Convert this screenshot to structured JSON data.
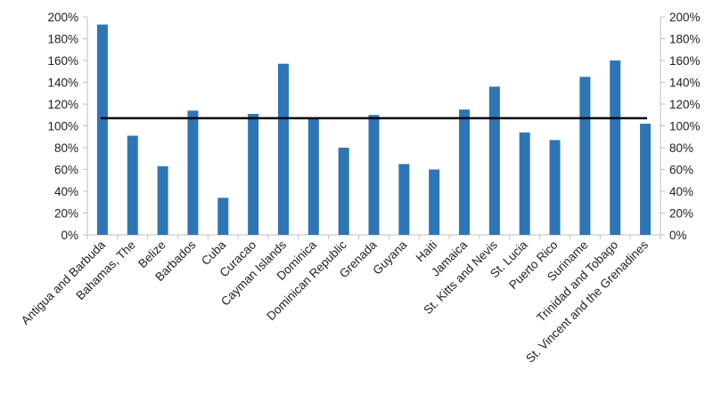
{
  "chart_data": {
    "type": "bar",
    "categories": [
      "Antigua and Barbuda",
      "Bahamas, The",
      "Belize",
      "Barbados",
      "Cuba",
      "Curacao",
      "Cayman Islands",
      "Dominica",
      "Dominican Republic",
      "Grenada",
      "Guyana",
      "Haiti",
      "Jamaica",
      "St. Kitts and Nevis",
      "St. Lucia",
      "Puerto Rico",
      "Suriname",
      "Trinidad and Tobago",
      "St. Vincent and the Grenadines"
    ],
    "values": [
      193,
      91,
      63,
      114,
      34,
      111,
      157,
      107,
      80,
      110,
      65,
      60,
      115,
      136,
      94,
      87,
      145,
      160,
      102
    ],
    "reference_line": 107,
    "ylim": [
      0,
      200
    ],
    "yticks": [
      0,
      20,
      40,
      60,
      80,
      100,
      120,
      140,
      160,
      180,
      200
    ],
    "ytick_labels": [
      "0%",
      "20%",
      "40%",
      "60%",
      "80%",
      "100%",
      "120%",
      "140%",
      "160%",
      "180%",
      "200%"
    ],
    "secondary_axis": true,
    "grid": false,
    "title": "",
    "xlabel": "",
    "ylabel": "",
    "colors": {
      "bar": "#2E75B6",
      "line": "#000000",
      "axis": "#BFBFBF"
    }
  }
}
